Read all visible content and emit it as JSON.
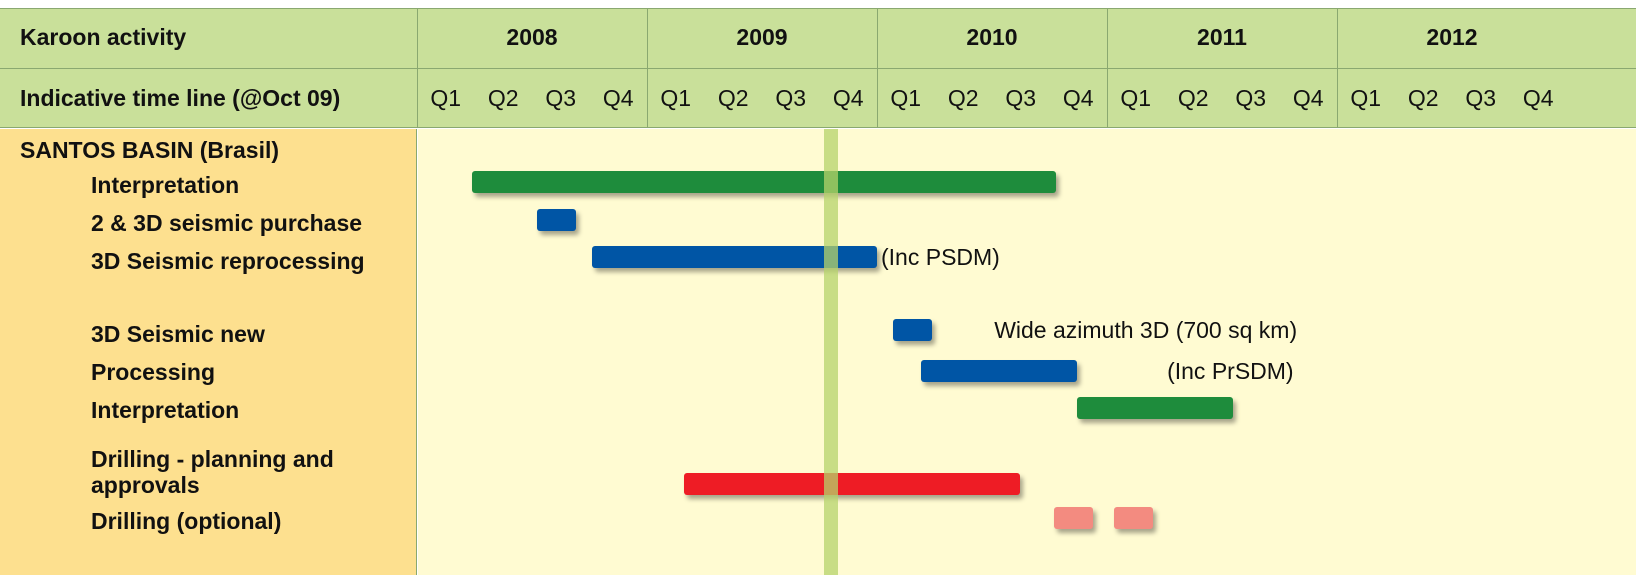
{
  "chart_data": {
    "type": "gantt",
    "header_label": "Karoon activity",
    "subheader_label": "Indicative time line (@Oct 09)",
    "section": "SANTOS BASIN (Brasil)",
    "years": [
      2008,
      2009,
      2010,
      2011,
      2012
    ],
    "quarters": [
      "Q1",
      "Q2",
      "Q3",
      "Q4"
    ],
    "xlim": [
      2008,
      2013
    ],
    "current_marker": {
      "value": 2009.8,
      "color": "#b5d36b"
    },
    "tasks": [
      {
        "name": "Interpretation",
        "color": "#1e8c3c",
        "segments": [
          {
            "start": 2008.24,
            "end": 2010.78
          }
        ]
      },
      {
        "name": "2 & 3D seismic purchase",
        "color": "#0055a5",
        "segments": [
          {
            "start": 2008.52,
            "end": 2008.69
          }
        ]
      },
      {
        "name": "3D Seismic reprocessing",
        "color": "#0055a5",
        "segments": [
          {
            "start": 2008.76,
            "end": 2010.0
          }
        ],
        "note": "(Inc PSDM)"
      },
      {
        "name": "3D Seismic new",
        "color": "#0055a5",
        "segments": [
          {
            "start": 2010.07,
            "end": 2010.24
          }
        ],
        "note": "Wide azimuth 3D (700 sq km)"
      },
      {
        "name": "Processing",
        "color": "#0055a5",
        "segments": [
          {
            "start": 2010.19,
            "end": 2010.87
          }
        ],
        "note": "(Inc PrSDM)"
      },
      {
        "name": "Interpretation",
        "color": "#1e8c3c",
        "segments": [
          {
            "start": 2010.87,
            "end": 2011.55
          }
        ]
      },
      {
        "name": "Drilling - planning and approvals",
        "color": "#ee1c25",
        "segments": [
          {
            "start": 2009.16,
            "end": 2010.62
          }
        ]
      },
      {
        "name": "Drilling (optional)",
        "color": "#f38b80",
        "segments": [
          {
            "start": 2010.77,
            "end": 2010.94
          },
          {
            "start": 2011.03,
            "end": 2011.2
          }
        ]
      }
    ]
  }
}
